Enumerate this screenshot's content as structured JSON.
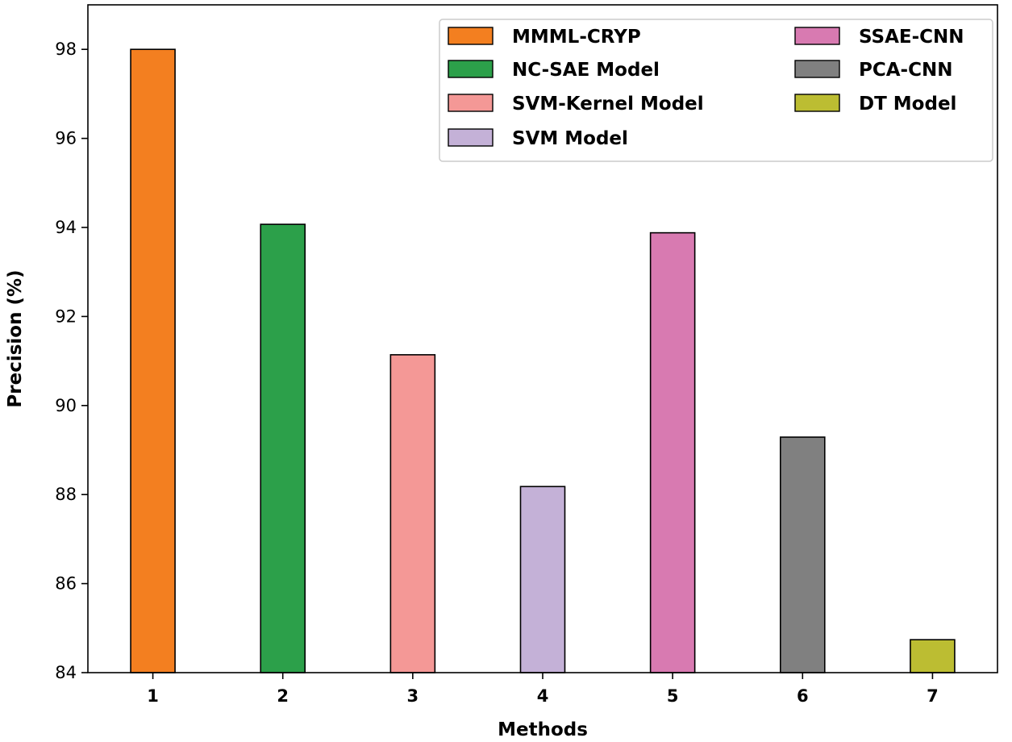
{
  "chart_data": {
    "type": "bar",
    "categories": [
      "1",
      "2",
      "3",
      "4",
      "5",
      "6",
      "7"
    ],
    "series": [
      {
        "name": "MMML-CRYP",
        "category": "1",
        "value": 98.0,
        "color": "#f37f20"
      },
      {
        "name": "NC-SAE Model",
        "category": "2",
        "value": 94.07,
        "color": "#2ca04a"
      },
      {
        "name": "SVM-Kernel Model",
        "category": "3",
        "value": 91.14,
        "color": "#f49896"
      },
      {
        "name": "SVM Model",
        "category": "4",
        "value": 88.18,
        "color": "#c4b1d7"
      },
      {
        "name": "SSAE-CNN",
        "category": "5",
        "value": 93.88,
        "color": "#d87ab1"
      },
      {
        "name": "PCA-CNN",
        "category": "6",
        "value": 89.29,
        "color": "#808080"
      },
      {
        "name": "DT Model",
        "category": "7",
        "value": 84.74,
        "color": "#bcbd32"
      }
    ],
    "title": "",
    "xlabel": "Methods",
    "ylabel": "Precision (%)",
    "ylim": [
      84,
      99
    ],
    "yticks": [
      84,
      86,
      88,
      90,
      92,
      94,
      96,
      98
    ],
    "legend": {
      "position": "top-right",
      "columns": [
        [
          "MMML-CRYP",
          "NC-SAE Model",
          "SVM-Kernel Model",
          "SVM Model"
        ],
        [
          "SSAE-CNN",
          "PCA-CNN",
          "DT Model"
        ]
      ]
    }
  }
}
